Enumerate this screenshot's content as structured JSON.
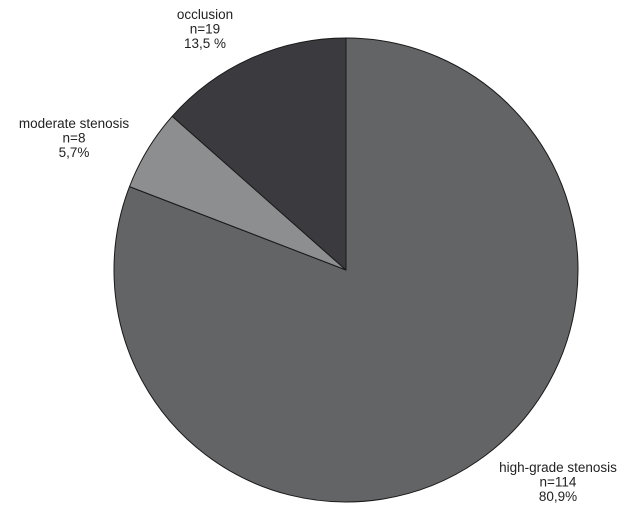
{
  "chart_data": {
    "type": "pie",
    "title": "",
    "start_angle_deg": 0,
    "direction": "clockwise",
    "slices": [
      {
        "name": "high-grade stenosis",
        "n": 114,
        "percent": 80.9,
        "label_lines": [
          "high-grade stenosis",
          "n=114",
          "80,9%"
        ],
        "color": "#636466"
      },
      {
        "name": "moderate stenosis",
        "n": 8,
        "percent": 5.7,
        "label_lines": [
          "moderate stenosis",
          "n=8",
          "5,7%"
        ],
        "color": "#8d8e90"
      },
      {
        "name": "occlusion",
        "n": 19,
        "percent": 13.5,
        "label_lines": [
          "occlusion",
          "n=19",
          "13,5 %"
        ],
        "color": "#3a3a3f"
      }
    ],
    "legend": "none",
    "outline_color": "#1a1a1a"
  }
}
